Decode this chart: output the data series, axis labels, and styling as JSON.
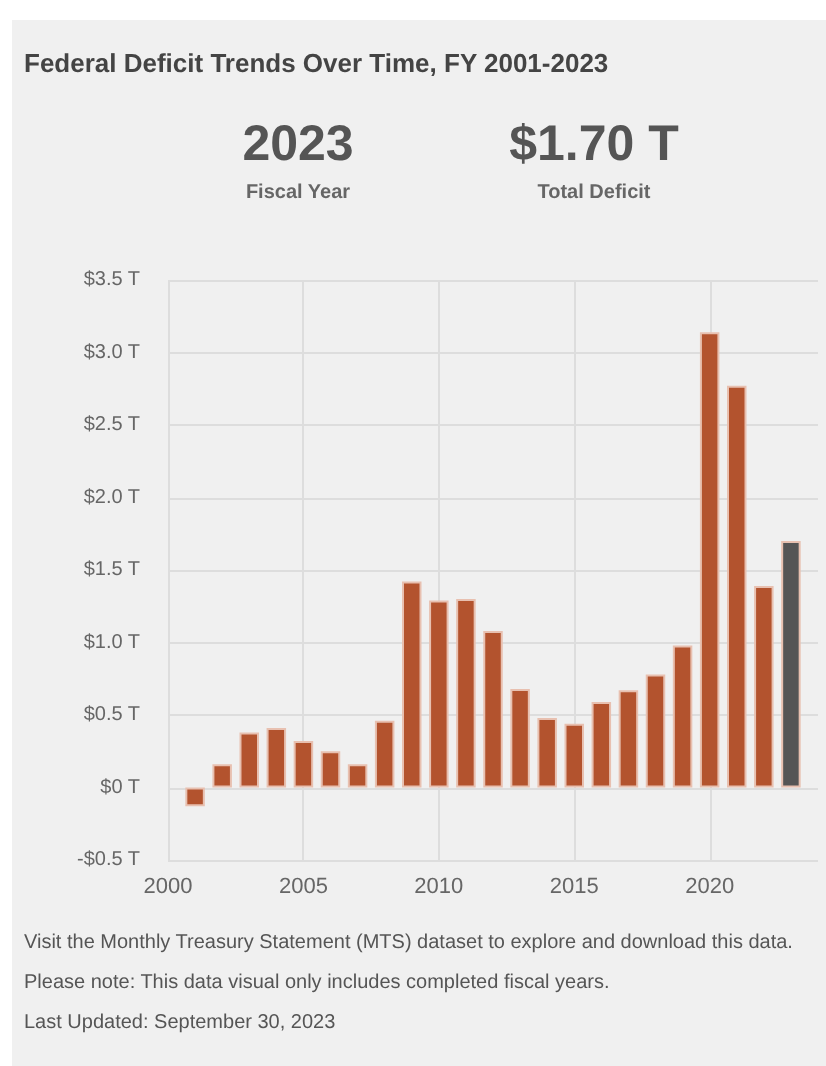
{
  "chart_data": {
    "type": "bar",
    "title": "Federal Deficit Trends Over Time, FY 2001-2023",
    "annotations": [
      "2023",
      "Fiscal Year",
      "$1.70 T",
      "Total Deficit",
      "Visit the Monthly Treasury Statement (MTS) dataset to explore and download this data.",
      "Please note: This data visual only includes completed fiscal years.",
      "Last Updated: September 30, 2023"
    ],
    "x": [
      2001,
      2002,
      2003,
      2004,
      2005,
      2006,
      2007,
      2008,
      2009,
      2010,
      2011,
      2012,
      2013,
      2014,
      2015,
      2016,
      2017,
      2018,
      2019,
      2020,
      2021,
      2022,
      2023
    ],
    "values": [
      -0.13,
      0.16,
      0.38,
      0.41,
      0.32,
      0.25,
      0.16,
      0.46,
      1.42,
      1.29,
      1.3,
      1.08,
      0.68,
      0.48,
      0.44,
      0.59,
      0.67,
      0.78,
      0.98,
      3.14,
      2.77,
      1.39,
      1.7
    ],
    "colors": [
      "#b3532e",
      "#b3532e",
      "#b3532e",
      "#b3532e",
      "#b3532e",
      "#b3532e",
      "#b3532e",
      "#b3532e",
      "#b3532e",
      "#b3532e",
      "#b3532e",
      "#b3532e",
      "#b3532e",
      "#b3532e",
      "#b3532e",
      "#b3532e",
      "#b3532e",
      "#b3532e",
      "#b3532e",
      "#b3532e",
      "#b3532e",
      "#b3532e",
      "#555555"
    ],
    "xlim": [
      2000,
      2024
    ],
    "xticks": [
      2000,
      2005,
      2010,
      2015,
      2020
    ],
    "ylim": [
      -0.5,
      3.5
    ],
    "yticks": [
      {
        "value": -0.5,
        "label": "-$0.5 T"
      },
      {
        "value": 0,
        "label": "$0 T"
      },
      {
        "value": 0.5,
        "label": "$0.5 T"
      },
      {
        "value": 1,
        "label": "$1.0 T"
      },
      {
        "value": 1.5,
        "label": "$1.5 T"
      },
      {
        "value": 2,
        "label": "$2.0 T"
      },
      {
        "value": 2.5,
        "label": "$2.5 T"
      },
      {
        "value": 3,
        "label": "$3.0 T"
      },
      {
        "value": 3.5,
        "label": "$3.5 T"
      }
    ],
    "grid": true
  }
}
